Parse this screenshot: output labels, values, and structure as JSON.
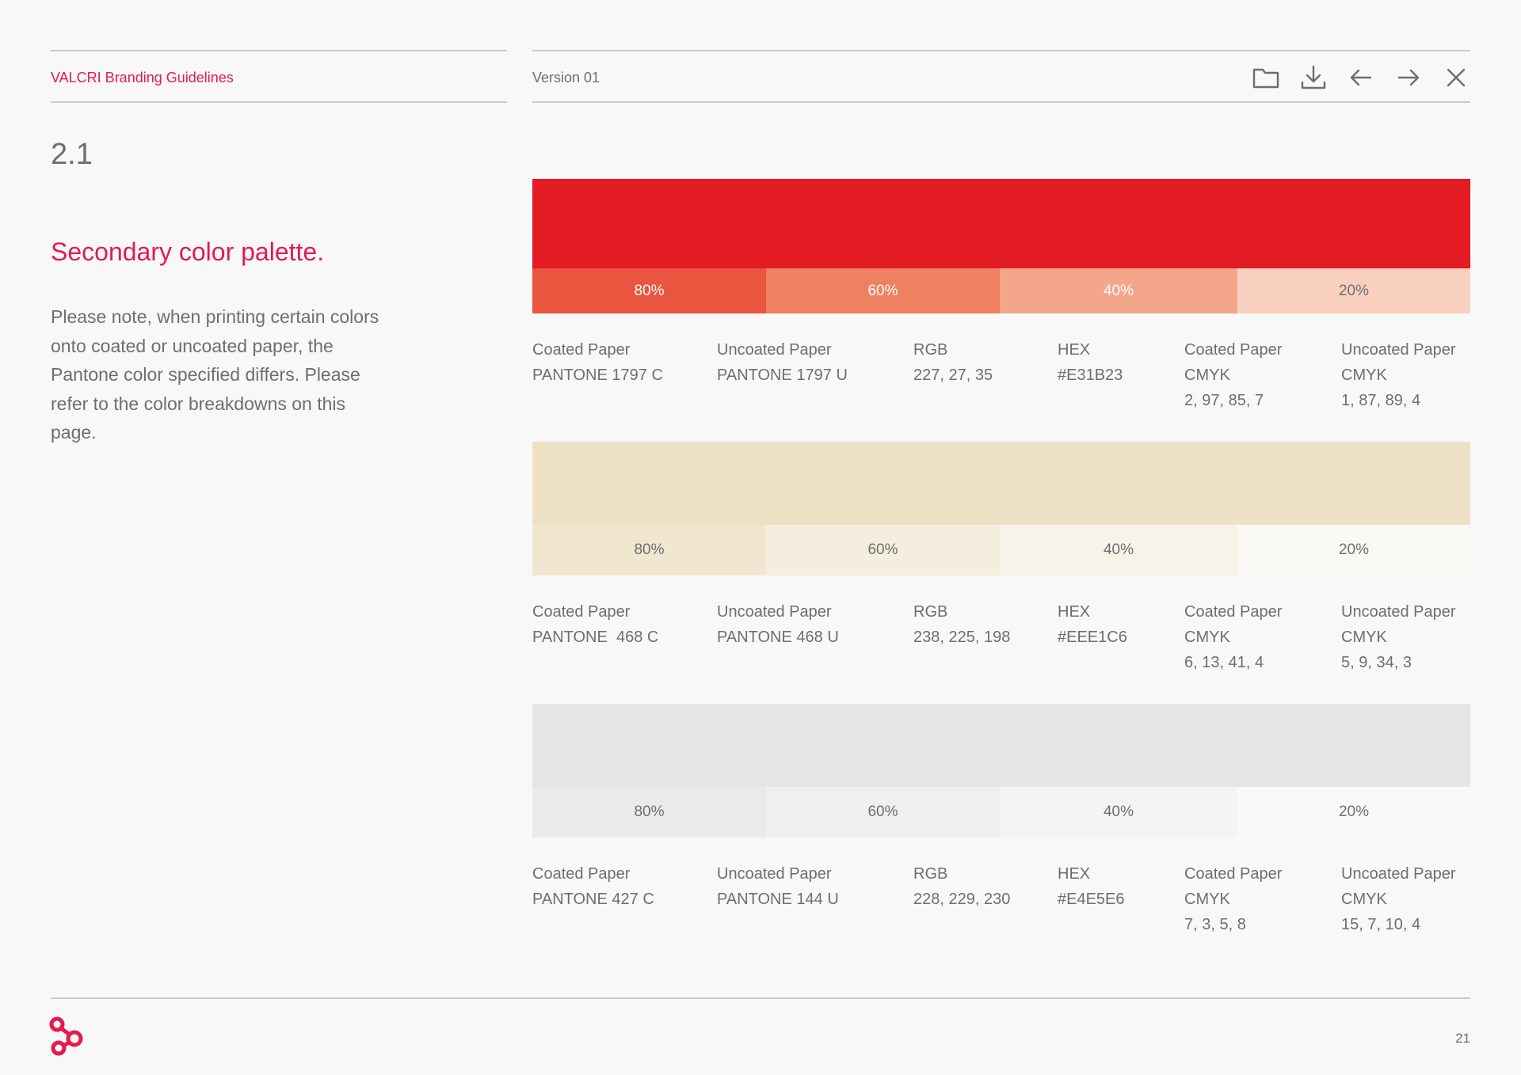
{
  "header": {
    "brand": "VALCRI Branding Guidelines",
    "version": "Version 01",
    "tools": [
      "folder-icon",
      "download-icon",
      "arrow-left-icon",
      "arrow-right-icon",
      "close-icon"
    ]
  },
  "section": {
    "number": "2.1",
    "title": "Secondary color palette.",
    "body": "Please note, when printing certain colors onto coated or uncoated paper, the Pantone color specified differs. Please refer to the color breakdowns on this page."
  },
  "palettes": [
    {
      "main_color": "#E31B23",
      "tints": [
        {
          "label": "80%",
          "color": "#E9553E",
          "text_color": "#ffffff"
        },
        {
          "label": "60%",
          "color": "#EF8163",
          "text_color": "#ffffff"
        },
        {
          "label": "40%",
          "color": "#F4A68B",
          "text_color": "#ffffff"
        },
        {
          "label": "20%",
          "color": "#FAD0BF",
          "text_color": "#6d6e71"
        }
      ],
      "specs": [
        {
          "label": "Coated Paper",
          "lines": [
            "PANTONE 1797 C"
          ]
        },
        {
          "label": "Uncoated Paper",
          "lines": [
            "PANTONE 1797 U"
          ]
        },
        {
          "label": "RGB",
          "lines": [
            "227, 27, 35"
          ]
        },
        {
          "label": "HEX",
          "lines": [
            "#E31B23"
          ]
        },
        {
          "label": "Coated Paper",
          "lines": [
            "CMYK",
            "2, 97, 85, 7"
          ]
        },
        {
          "label": "Uncoated Paper",
          "lines": [
            "CMYK",
            "1, 87, 89, 4"
          ]
        }
      ]
    },
    {
      "main_color": "#EEE1C6",
      "tints": [
        {
          "label": "80%",
          "color": "#F1E7D1",
          "text_color": "#6d6e71"
        },
        {
          "label": "60%",
          "color": "#F5EDDD",
          "text_color": "#6d6e71"
        },
        {
          "label": "40%",
          "color": "#F8F3E8",
          "text_color": "#6d6e71"
        },
        {
          "label": "20%",
          "color": "#FBF9F3",
          "text_color": "#6d6e71"
        }
      ],
      "specs": [
        {
          "label": "Coated Paper",
          "lines": [
            "PANTONE  468 C"
          ]
        },
        {
          "label": "Uncoated Paper",
          "lines": [
            "PANTONE 468 U"
          ]
        },
        {
          "label": "RGB",
          "lines": [
            "238, 225, 198"
          ]
        },
        {
          "label": "HEX",
          "lines": [
            "#EEE1C6"
          ]
        },
        {
          "label": "Coated Paper",
          "lines": [
            "CMYK",
            "6, 13, 41, 4"
          ]
        },
        {
          "label": "Uncoated Paper",
          "lines": [
            "CMYK",
            "5, 9, 34, 3"
          ]
        }
      ]
    },
    {
      "main_color": "#E4E5E6",
      "tints": [
        {
          "label": "80%",
          "color": "#E9EAEB",
          "text_color": "#6d6e71"
        },
        {
          "label": "60%",
          "color": "#EFEFF0",
          "text_color": "#6d6e71"
        },
        {
          "label": "40%",
          "color": "#F4F4F5",
          "text_color": "#6d6e71"
        },
        {
          "label": "20%",
          "color": "#F9F9F9",
          "text_color": "#6d6e71"
        }
      ],
      "specs": [
        {
          "label": "Coated Paper",
          "lines": [
            "PANTONE 427 C"
          ]
        },
        {
          "label": "Uncoated Paper",
          "lines": [
            "PANTONE 144 U"
          ]
        },
        {
          "label": "RGB",
          "lines": [
            "228, 229, 230"
          ]
        },
        {
          "label": "HEX",
          "lines": [
            "#E4E5E6"
          ]
        },
        {
          "label": "Coated Paper",
          "lines": [
            "CMYK",
            "7, 3, 5, 8"
          ]
        },
        {
          "label": "Uncoated Paper",
          "lines": [
            "CMYK",
            "15, 7, 10, 4"
          ]
        }
      ]
    }
  ],
  "footer": {
    "page_number": "21",
    "logo_color": "#E31B50"
  }
}
